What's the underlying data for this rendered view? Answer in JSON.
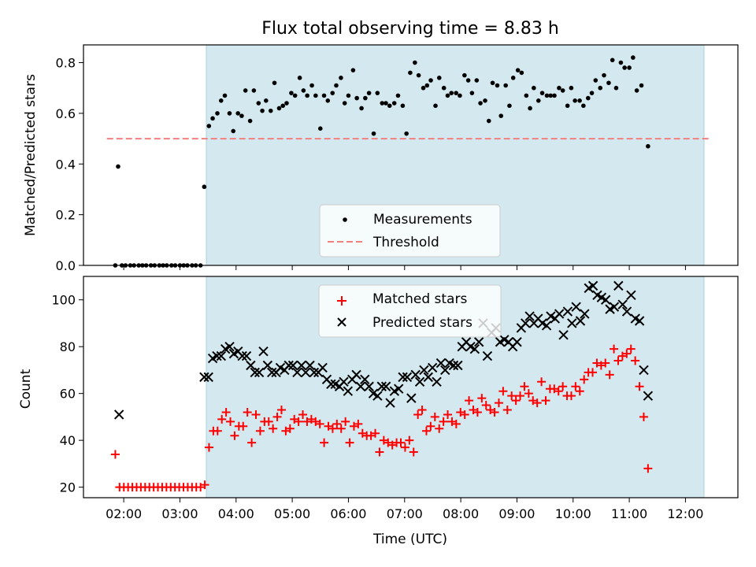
{
  "chart_data": [
    {
      "type": "scatter",
      "title": "Flux total observing time = 8.83 h",
      "xlabel": "",
      "ylabel": "Matched/Predicted stars",
      "xlim": [
        "01:17",
        "12:56"
      ],
      "ylim": [
        0,
        0.87
      ],
      "yticks": [
        "0.0",
        "0.2",
        "0.4",
        "0.6",
        "0.8"
      ],
      "shaded_span": [
        "03:30",
        "12:20"
      ],
      "legend_position": "lower center",
      "series": [
        {
          "name": "Measurements",
          "marker": "dot",
          "color": "#000000",
          "points": [
            [
              "01:51",
              0.0
            ],
            [
              "01:54",
              0.39
            ],
            [
              "01:58",
              0.0
            ],
            [
              "02:02",
              0.0
            ],
            [
              "02:07",
              0.0
            ],
            [
              "02:11",
              0.0
            ],
            [
              "02:16",
              0.0
            ],
            [
              "02:20",
              0.0
            ],
            [
              "02:24",
              0.0
            ],
            [
              "02:29",
              0.0
            ],
            [
              "02:33",
              0.0
            ],
            [
              "02:38",
              0.0
            ],
            [
              "02:42",
              0.0
            ],
            [
              "02:46",
              0.0
            ],
            [
              "02:51",
              0.0
            ],
            [
              "02:55",
              0.0
            ],
            [
              "03:00",
              0.0
            ],
            [
              "03:04",
              0.0
            ],
            [
              "03:08",
              0.0
            ],
            [
              "03:13",
              0.0
            ],
            [
              "03:17",
              0.0
            ],
            [
              "03:22",
              0.0
            ],
            [
              "03:26",
              0.31
            ],
            [
              "03:31",
              0.55
            ],
            [
              "03:35",
              0.58
            ],
            [
              "03:40",
              0.6
            ],
            [
              "03:44",
              0.65
            ],
            [
              "03:48",
              0.67
            ],
            [
              "03:53",
              0.6
            ],
            [
              "03:57",
              0.53
            ],
            [
              "04:02",
              0.6
            ],
            [
              "04:06",
              0.59
            ],
            [
              "04:10",
              0.69
            ],
            [
              "04:15",
              0.57
            ],
            [
              "04:19",
              0.69
            ],
            [
              "04:24",
              0.64
            ],
            [
              "04:28",
              0.61
            ],
            [
              "04:32",
              0.65
            ],
            [
              "04:37",
              0.61
            ],
            [
              "04:41",
              0.72
            ],
            [
              "04:46",
              0.62
            ],
            [
              "04:50",
              0.63
            ],
            [
              "04:54",
              0.64
            ],
            [
              "04:59",
              0.68
            ],
            [
              "05:03",
              0.67
            ],
            [
              "05:08",
              0.74
            ],
            [
              "05:12",
              0.69
            ],
            [
              "05:16",
              0.67
            ],
            [
              "05:21",
              0.71
            ],
            [
              "05:25",
              0.67
            ],
            [
              "05:30",
              0.54
            ],
            [
              "05:34",
              0.67
            ],
            [
              "05:38",
              0.65
            ],
            [
              "05:43",
              0.68
            ],
            [
              "05:47",
              0.71
            ],
            [
              "05:52",
              0.74
            ],
            [
              "05:56",
              0.64
            ],
            [
              "06:00",
              0.67
            ],
            [
              "06:05",
              0.77
            ],
            [
              "06:09",
              0.66
            ],
            [
              "06:14",
              0.62
            ],
            [
              "06:18",
              0.66
            ],
            [
              "06:22",
              0.68
            ],
            [
              "06:27",
              0.52
            ],
            [
              "06:31",
              0.68
            ],
            [
              "06:36",
              0.64
            ],
            [
              "06:40",
              0.64
            ],
            [
              "06:44",
              0.63
            ],
            [
              "06:49",
              0.64
            ],
            [
              "06:53",
              0.67
            ],
            [
              "06:58",
              0.63
            ],
            [
              "07:02",
              0.52
            ],
            [
              "07:06",
              0.76
            ],
            [
              "07:11",
              0.8
            ],
            [
              "07:15",
              0.75
            ],
            [
              "07:20",
              0.7
            ],
            [
              "07:24",
              0.71
            ],
            [
              "07:28",
              0.73
            ],
            [
              "07:33",
              0.63
            ],
            [
              "07:37",
              0.74
            ],
            [
              "07:42",
              0.7
            ],
            [
              "07:46",
              0.67
            ],
            [
              "07:50",
              0.68
            ],
            [
              "07:55",
              0.68
            ],
            [
              "07:59",
              0.67
            ],
            [
              "08:04",
              0.75
            ],
            [
              "08:08",
              0.73
            ],
            [
              "08:12",
              0.68
            ],
            [
              "08:17",
              0.73
            ],
            [
              "08:21",
              0.64
            ],
            [
              "08:26",
              0.65
            ],
            [
              "08:30",
              0.57
            ],
            [
              "08:34",
              0.72
            ],
            [
              "08:39",
              0.71
            ],
            [
              "08:43",
              0.59
            ],
            [
              "08:48",
              0.71
            ],
            [
              "08:52",
              0.63
            ],
            [
              "08:56",
              0.74
            ],
            [
              "09:01",
              0.77
            ],
            [
              "09:05",
              0.76
            ],
            [
              "09:10",
              0.67
            ],
            [
              "09:14",
              0.62
            ],
            [
              "09:18",
              0.7
            ],
            [
              "09:23",
              0.65
            ],
            [
              "09:27",
              0.68
            ],
            [
              "09:32",
              0.67
            ],
            [
              "09:36",
              0.67
            ],
            [
              "09:40",
              0.67
            ],
            [
              "09:45",
              0.7
            ],
            [
              "09:49",
              0.69
            ],
            [
              "09:54",
              0.63
            ],
            [
              "09:58",
              0.7
            ],
            [
              "10:02",
              0.65
            ],
            [
              "10:07",
              0.65
            ],
            [
              "10:11",
              0.63
            ],
            [
              "10:16",
              0.66
            ],
            [
              "10:20",
              0.68
            ],
            [
              "10:24",
              0.73
            ],
            [
              "10:29",
              0.7
            ],
            [
              "10:33",
              0.75
            ],
            [
              "10:38",
              0.72
            ],
            [
              "10:42",
              0.81
            ],
            [
              "10:46",
              0.7
            ],
            [
              "10:51",
              0.8
            ],
            [
              "10:55",
              0.78
            ],
            [
              "11:00",
              0.78
            ],
            [
              "11:04",
              0.82
            ],
            [
              "11:08",
              0.69
            ],
            [
              "11:13",
              0.71
            ],
            [
              "11:20",
              0.47
            ]
          ]
        },
        {
          "name": "Threshold",
          "marker": "dashed-line",
          "color": "#f08080",
          "points": [
            [
              "01:42",
              0.5
            ],
            [
              "12:28",
              0.5
            ]
          ]
        }
      ]
    },
    {
      "type": "scatter",
      "title": "",
      "xlabel": "Time (UTC)",
      "ylabel": "Count",
      "xlim": [
        "01:17",
        "12:56"
      ],
      "ylim": [
        15.5,
        110
      ],
      "yticks": [
        "20",
        "40",
        "60",
        "80",
        "100"
      ],
      "xticks": [
        "02:00",
        "03:00",
        "04:00",
        "05:00",
        "06:00",
        "07:00",
        "08:00",
        "09:00",
        "10:00",
        "11:00",
        "12:00"
      ],
      "shaded_span": [
        "03:30",
        "12:20"
      ],
      "legend_position": "upper center",
      "series": [
        {
          "name": "Matched stars",
          "marker": "plus",
          "color": "#ff0000",
          "values": [
            34,
            20,
            20,
            20,
            20,
            20,
            20,
            20,
            20,
            20,
            20,
            20,
            20,
            20,
            20,
            20,
            20,
            20,
            20,
            20,
            20,
            21,
            37,
            44,
            44,
            49,
            52,
            48,
            42,
            46,
            46,
            52,
            39,
            51,
            44,
            48,
            48,
            45,
            50,
            53,
            44,
            45,
            49,
            48,
            51,
            48,
            49,
            48,
            47,
            39,
            46,
            45,
            47,
            45,
            48,
            39,
            46,
            47,
            43,
            42,
            42,
            43,
            35,
            40,
            39,
            38,
            39,
            39,
            37,
            40,
            35,
            51,
            53,
            44,
            46,
            50,
            45,
            48,
            51,
            48,
            47,
            52,
            51,
            57,
            53,
            52,
            58,
            55,
            53,
            52,
            56,
            61,
            53,
            59,
            57,
            59,
            63,
            60,
            57,
            56,
            65,
            57,
            62,
            62,
            61,
            63,
            59,
            59,
            63,
            61,
            66,
            69,
            69,
            73,
            72,
            73,
            68,
            79,
            74,
            76,
            77,
            79,
            74,
            63,
            50,
            28
          ]
        },
        {
          "name": "Predicted stars",
          "marker": "x",
          "color": "#000000",
          "values": [
            51,
            67,
            67,
            75,
            76,
            76,
            79,
            80,
            77,
            78,
            76,
            76,
            72,
            69,
            69,
            78,
            72,
            69,
            69,
            71,
            70,
            72,
            72,
            69,
            72,
            69,
            72,
            69,
            69,
            71,
            66,
            64,
            64,
            63,
            65,
            61,
            66,
            68,
            63,
            66,
            63,
            60,
            59,
            63,
            63,
            56,
            61,
            62,
            67,
            67,
            58,
            68,
            65,
            70,
            67,
            71,
            65,
            73,
            70,
            73,
            72,
            72,
            80,
            82,
            80,
            79,
            82,
            90,
            76,
            86,
            88,
            82,
            83,
            82,
            80,
            82,
            88,
            90,
            93,
            90,
            92,
            90,
            89,
            93,
            92,
            94,
            85,
            95,
            90,
            97,
            91,
            94,
            105,
            106,
            102,
            101,
            100,
            96,
            97,
            106,
            98,
            95,
            102,
            92,
            91,
            70,
            59
          ]
        }
      ]
    }
  ]
}
